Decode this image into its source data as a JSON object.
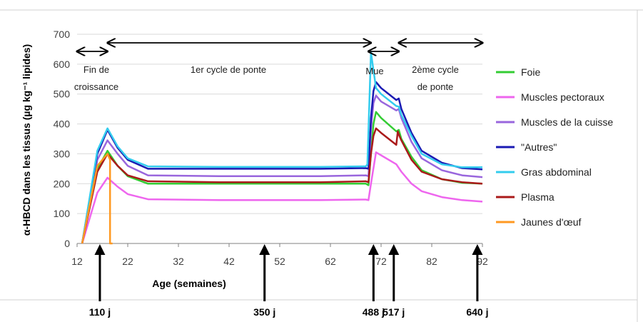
{
  "chart_data": {
    "type": "line",
    "title": "",
    "xlabel": "Age (semaines)",
    "ylabel": "α-HBCD dans les tissus (µg kg⁻¹ lipides)",
    "xlim": [
      12,
      92
    ],
    "ylim": [
      0,
      700
    ],
    "xticks": [
      "12",
      "22",
      "32",
      "42",
      "52",
      "62",
      "72",
      "82",
      "92"
    ],
    "yticks": [
      "0",
      "100",
      "200",
      "300",
      "400",
      "500",
      "600",
      "700"
    ],
    "grid": "horizontal",
    "legend_position": "right",
    "series": [
      {
        "name": "Foie",
        "color": "#33cc33",
        "x": [
          13,
          16,
          18,
          20,
          22,
          26,
          40,
          60,
          69,
          69.5,
          70,
          70.5,
          71,
          72,
          75,
          75.5,
          76,
          78,
          80,
          84,
          88,
          92
        ],
        "y": [
          0,
          250,
          310,
          260,
          225,
          200,
          200,
          200,
          200,
          195,
          300,
          400,
          440,
          420,
          375,
          380,
          350,
          290,
          245,
          215,
          203,
          200
        ]
      },
      {
        "name": "Muscles pectoraux",
        "color": "#ee66ee",
        "x": [
          13,
          16,
          18,
          20,
          22,
          26,
          40,
          60,
          69,
          69.5,
          70,
          71,
          72,
          75,
          76,
          78,
          80,
          84,
          88,
          92
        ],
        "y": [
          0,
          170,
          220,
          190,
          165,
          148,
          145,
          145,
          147,
          145,
          200,
          305,
          295,
          265,
          240,
          200,
          175,
          155,
          145,
          140
        ]
      },
      {
        "name": "Muscles de la cuisse",
        "color": "#9966dd",
        "x": [
          13,
          16,
          18,
          20,
          22,
          26,
          40,
          60,
          69,
          69.5,
          70,
          70.5,
          71,
          72,
          75,
          75.5,
          76,
          78,
          80,
          84,
          88,
          92
        ],
        "y": [
          0,
          280,
          345,
          300,
          260,
          228,
          225,
          225,
          228,
          225,
          380,
          470,
          495,
          475,
          445,
          450,
          420,
          340,
          285,
          245,
          228,
          222
        ]
      },
      {
        "name": "\"Autres\"",
        "color": "#1a1ab3",
        "x": [
          13,
          16,
          18,
          20,
          22,
          26,
          40,
          60,
          69,
          69.5,
          70,
          70.5,
          71,
          72,
          75,
          75.5,
          76,
          78,
          80,
          84,
          88,
          92
        ],
        "y": [
          0,
          300,
          380,
          320,
          280,
          250,
          250,
          250,
          252,
          250,
          420,
          510,
          540,
          520,
          480,
          485,
          450,
          370,
          310,
          270,
          252,
          248
        ]
      },
      {
        "name": "Gras abdominal",
        "color": "#33ccee",
        "x": [
          13,
          16,
          18,
          20,
          22,
          26,
          40,
          60,
          69,
          69.3,
          70,
          70.5,
          71,
          72,
          75,
          75.5,
          76,
          78,
          80,
          84,
          88,
          92
        ],
        "y": [
          0,
          310,
          385,
          325,
          285,
          258,
          256,
          256,
          258,
          265,
          640,
          580,
          520,
          500,
          460,
          458,
          430,
          360,
          300,
          265,
          255,
          255
        ]
      },
      {
        "name": "Plasma",
        "color": "#aa1a1a",
        "x": [
          13,
          16,
          18,
          20,
          22,
          26,
          40,
          60,
          69,
          69.5,
          70,
          70.5,
          71,
          72,
          75,
          75.3,
          75.6,
          76,
          78,
          80,
          84,
          88,
          92
        ],
        "y": [
          0,
          240,
          300,
          260,
          228,
          208,
          205,
          205,
          208,
          205,
          300,
          360,
          385,
          370,
          330,
          375,
          360,
          345,
          280,
          240,
          215,
          205,
          200
        ]
      },
      {
        "name": "Jaunes d'œuf",
        "color": "#ff9922",
        "x": [
          13,
          16,
          18,
          18.5,
          18.5,
          19
        ],
        "y": [
          0,
          260,
          300,
          280,
          0,
          0
        ]
      }
    ],
    "annotations": [
      {
        "id": "fin_croissance_1",
        "text": "Fin de"
      },
      {
        "id": "fin_croissance_2",
        "text": "croissance"
      },
      {
        "id": "cycle1",
        "text": "1er cycle de ponte"
      },
      {
        "id": "mue",
        "text": "Mue"
      },
      {
        "id": "cycle2_1",
        "text": "2ème cycle"
      },
      {
        "id": "cycle2_2",
        "text": "de ponte"
      }
    ],
    "events": [
      {
        "week": 16.5,
        "label": "110 j"
      },
      {
        "week": 49,
        "label": "350 j"
      },
      {
        "week": 70.5,
        "label": "488 j"
      },
      {
        "week": 74.5,
        "label": "517 j"
      },
      {
        "week": 91,
        "label": "640 j"
      }
    ],
    "periods": [
      {
        "from": 12,
        "to": 18
      },
      {
        "from": 18,
        "to": 70
      },
      {
        "from": 69.5,
        "to": 75.5
      },
      {
        "from": 75.5,
        "to": 92
      }
    ]
  }
}
